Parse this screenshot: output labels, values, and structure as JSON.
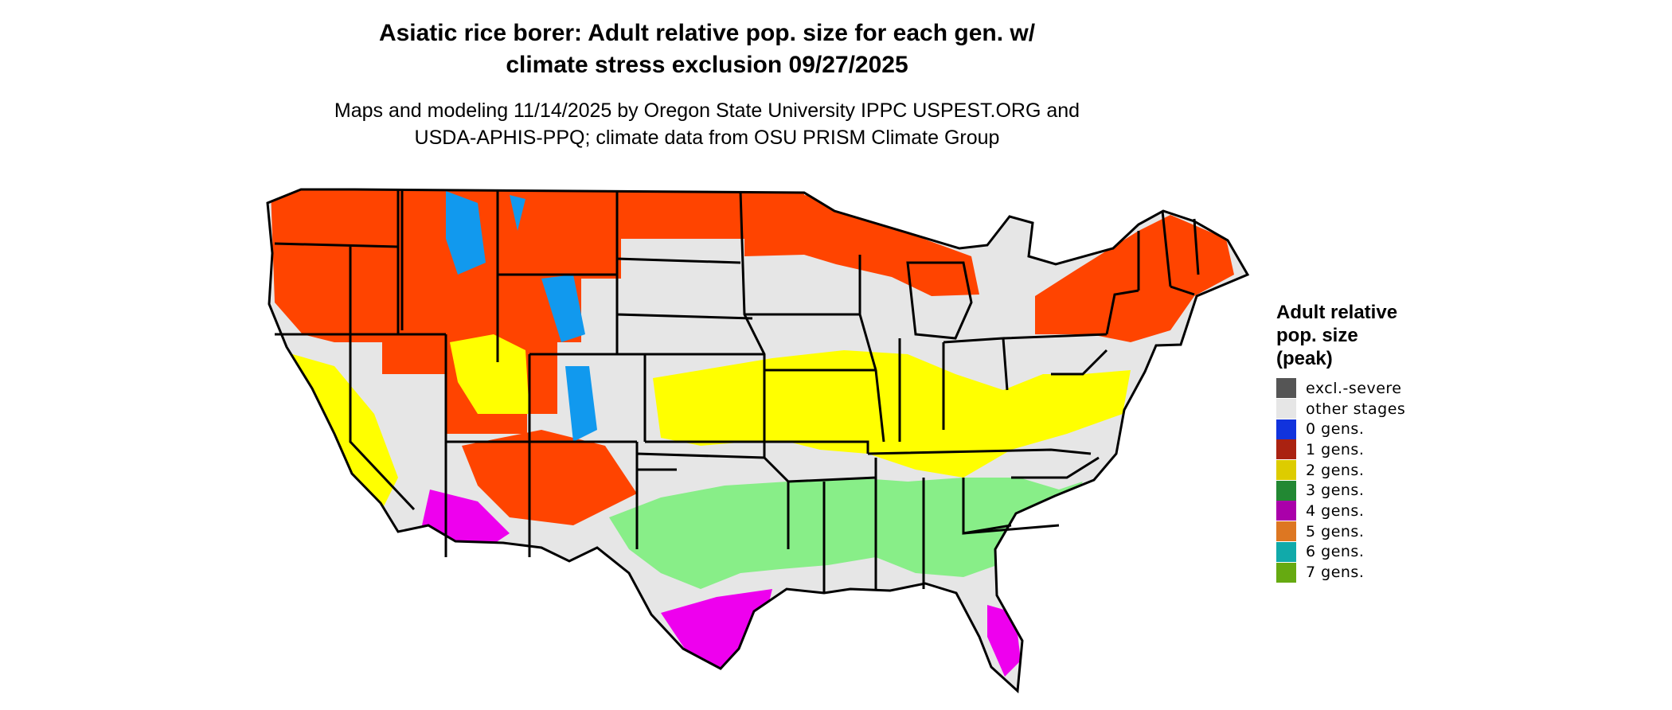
{
  "title": {
    "line1": "Asiatic rice borer: Adult relative pop. size for each gen. w/",
    "line2": "climate stress exclusion 09/27/2025"
  },
  "subtitle": {
    "line1": "Maps and modeling 11/14/2025 by Oregon State University IPPC USPEST.ORG and",
    "line2": "USDA-APHIS-PPQ; climate data from OSU PRISM Climate Group"
  },
  "legend": {
    "title_lines": [
      "Adult relative",
      "pop. size",
      "(peak)"
    ],
    "items": [
      {
        "label": "excl.-severe",
        "color": "#555555"
      },
      {
        "label": "other stages",
        "color": "#e6e6e6"
      },
      {
        "label": "0 gens.",
        "color": "#1133dd"
      },
      {
        "label": "1 gens.",
        "color": "#aa2211"
      },
      {
        "label": "2 gens.",
        "color": "#ddcc00"
      },
      {
        "label": "3 gens.",
        "color": "#228833"
      },
      {
        "label": "4 gens.",
        "color": "#aa00aa"
      },
      {
        "label": "5 gens.",
        "color": "#dd7722"
      },
      {
        "label": "6 gens.",
        "color": "#11aaaa"
      },
      {
        "label": "7 gens.",
        "color": "#66aa11"
      }
    ]
  },
  "map_colors": {
    "background": "#e6e6e6",
    "gen1_shade": "#ff4400",
    "gen2_shade": "#ffff00",
    "gen3_shade": "#88ee88",
    "gen4_shade": "#ee00ee",
    "gen0_shade": "#1199ee",
    "border": "#000000"
  }
}
